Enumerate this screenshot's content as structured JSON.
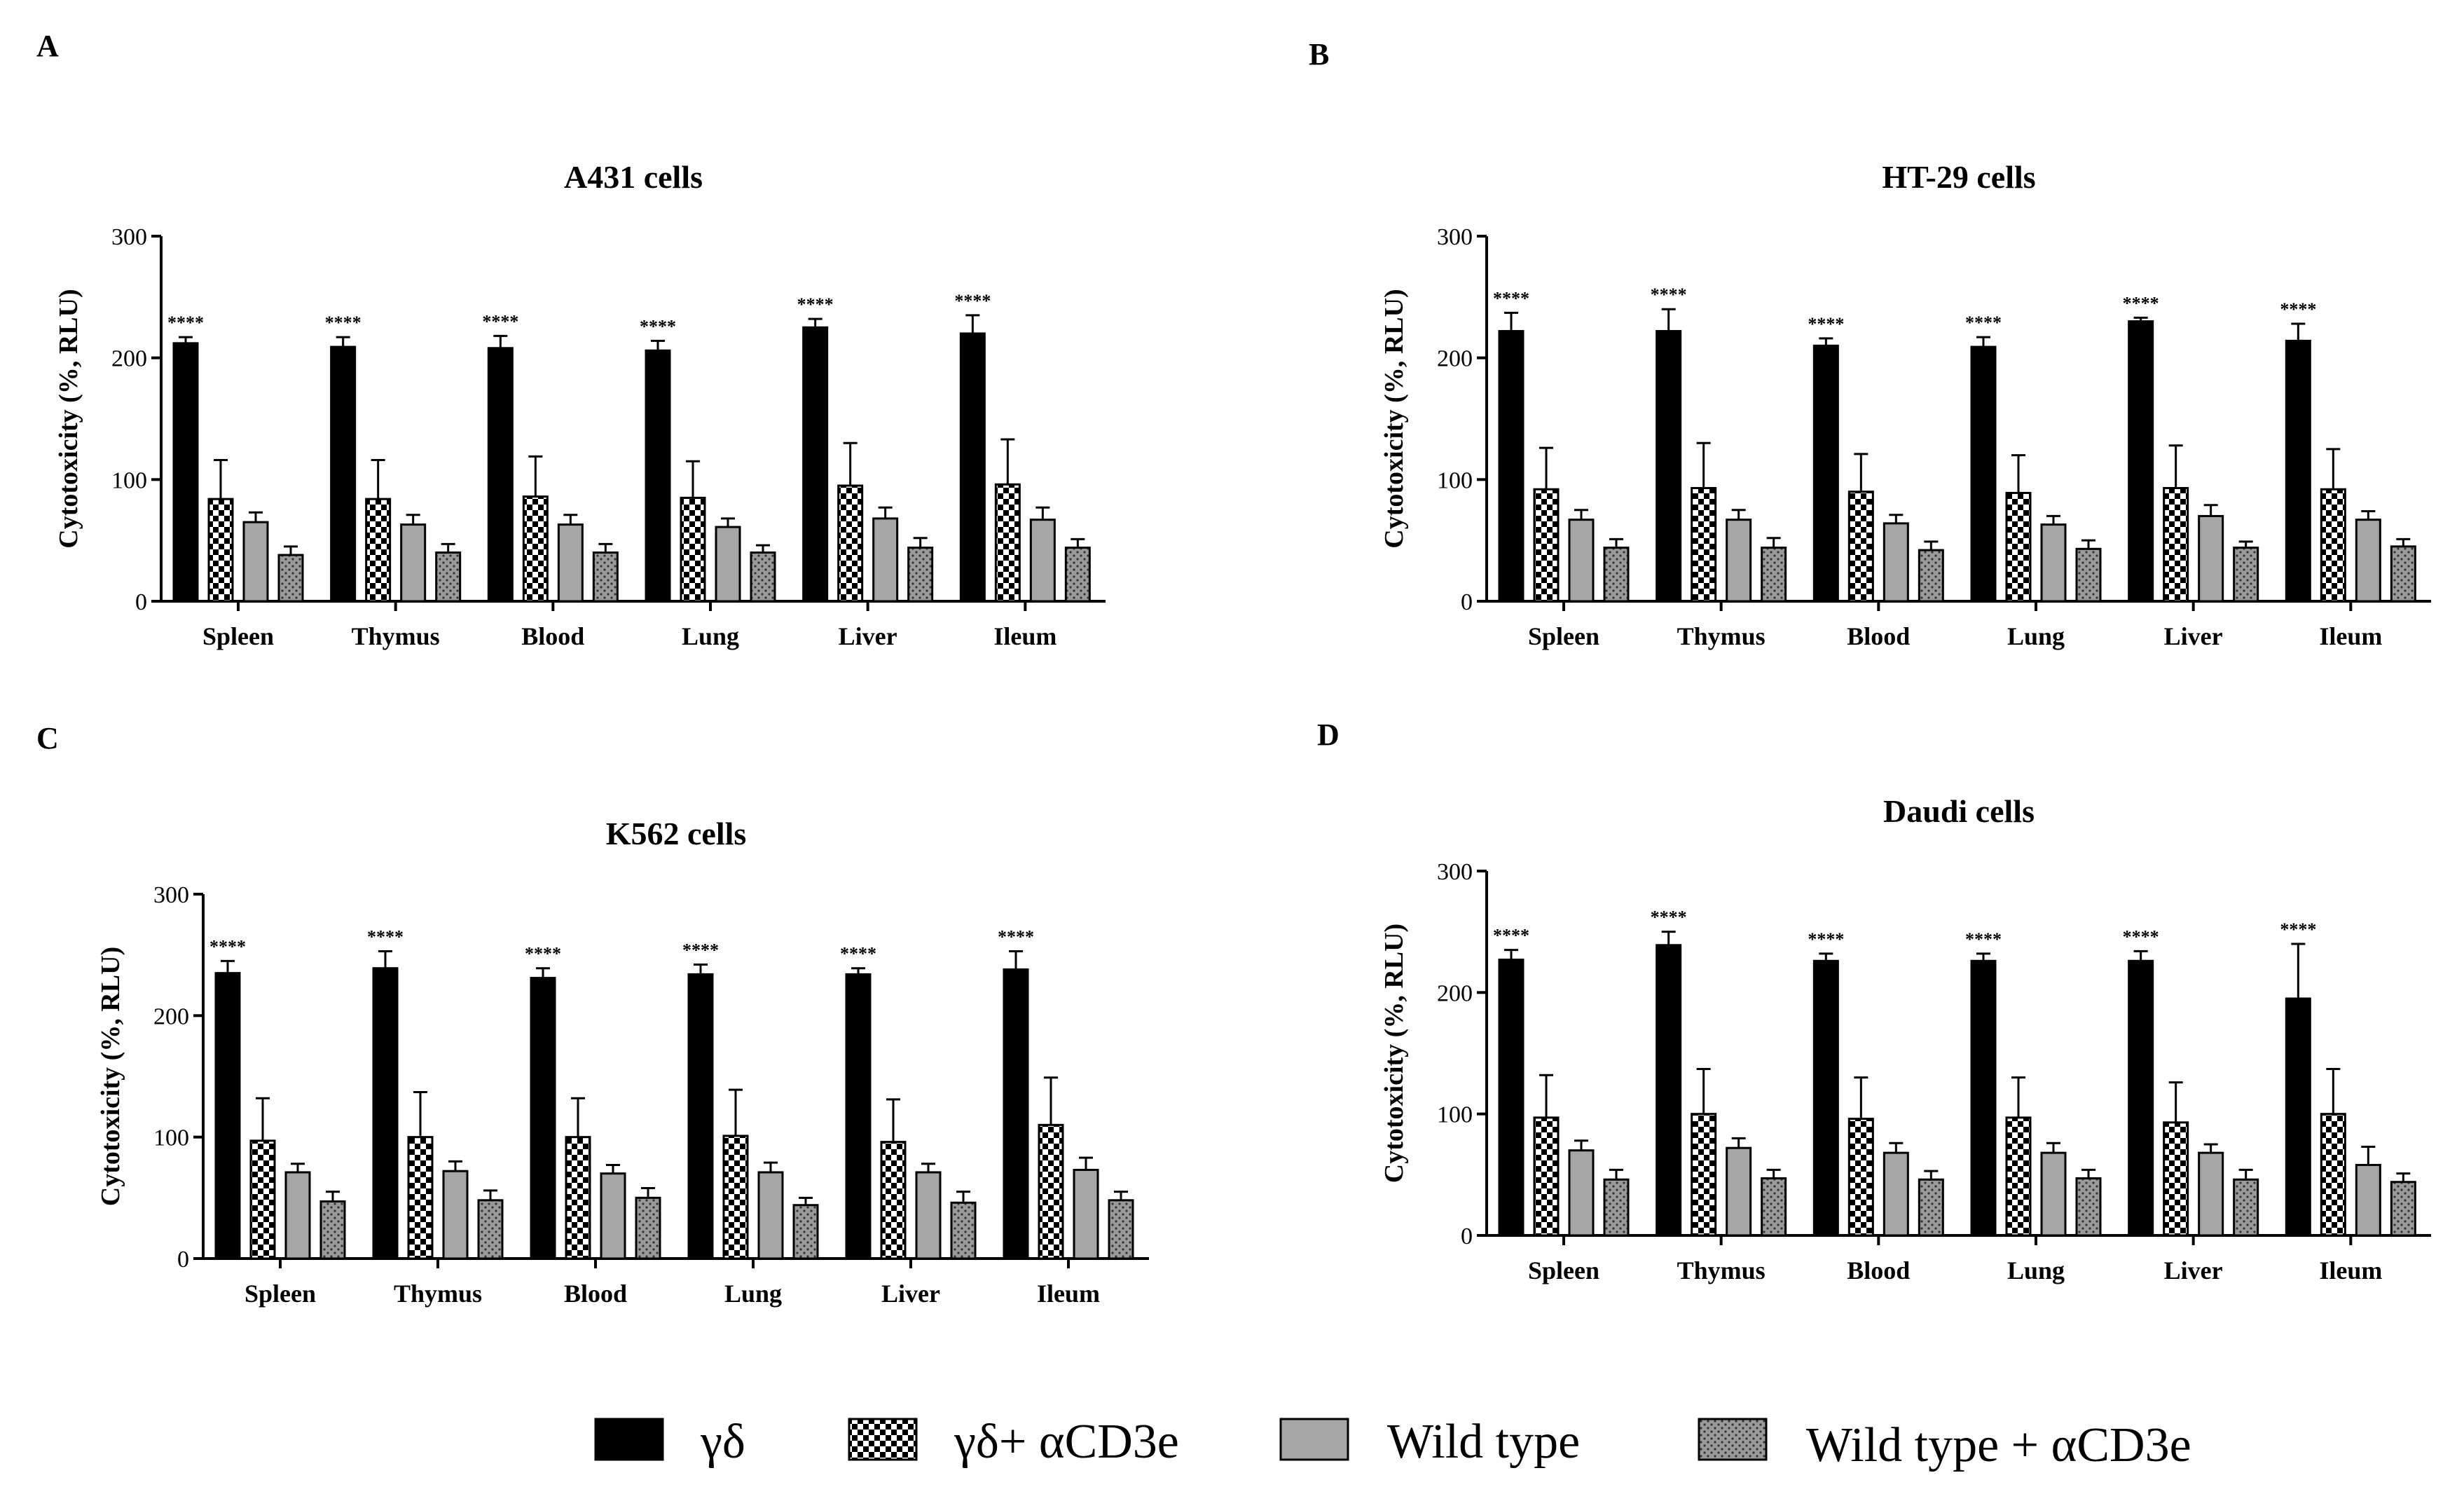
{
  "legend": [
    {
      "label": "γδ",
      "pattern": "solid-black"
    },
    {
      "label": "γδ+ αCD3e",
      "pattern": "checker"
    },
    {
      "label": "Wild type",
      "pattern": "solid-gray"
    },
    {
      "label": "Wild type + αCD3e",
      "pattern": "dotted-gray"
    }
  ],
  "colors": {
    "black": "#000000",
    "gray": "#a6a6a6",
    "dot_gray": "#9a9a9a",
    "white": "#ffffff"
  },
  "chart_data": [
    {
      "panel": "A",
      "type": "bar",
      "title": "A431 cells",
      "xlabel": "",
      "ylabel": "Cytotoxicity (%, RLU)",
      "ylim": [
        0,
        300
      ],
      "yticks": [
        0,
        100,
        200,
        300
      ],
      "categories": [
        "Spleen",
        "Thymus",
        "Blood",
        "Lung",
        "Liver",
        "Ileum"
      ],
      "series": [
        {
          "name": "γδ",
          "values": [
            212,
            209,
            208,
            206,
            225,
            220
          ],
          "errors": [
            5,
            8,
            10,
            8,
            7,
            15
          ]
        },
        {
          "name": "γδ+ αCD3e",
          "values": [
            84,
            84,
            86,
            85,
            95,
            96
          ],
          "errors": [
            32,
            32,
            33,
            30,
            35,
            37
          ]
        },
        {
          "name": "Wild type",
          "values": [
            65,
            63,
            63,
            61,
            68,
            67
          ],
          "errors": [
            8,
            8,
            8,
            7,
            9,
            10
          ]
        },
        {
          "name": "Wild type + αCD3e",
          "values": [
            38,
            40,
            40,
            40,
            44,
            44
          ],
          "errors": [
            7,
            7,
            7,
            6,
            8,
            7
          ]
        }
      ],
      "annotations": [
        "****",
        "****",
        "****",
        "****",
        "****",
        "****"
      ]
    },
    {
      "panel": "B",
      "type": "bar",
      "title": "HT-29 cells",
      "xlabel": "",
      "ylabel": "Cytotoxicity (%, RLU)",
      "ylim": [
        0,
        300
      ],
      "yticks": [
        0,
        100,
        200,
        300
      ],
      "categories": [
        "Spleen",
        "Thymus",
        "Blood",
        "Lung",
        "Liver",
        "Ileum"
      ],
      "series": [
        {
          "name": "γδ",
          "values": [
            222,
            222,
            210,
            209,
            230,
            214
          ],
          "errors": [
            15,
            18,
            6,
            8,
            3,
            14
          ]
        },
        {
          "name": "γδ+ αCD3e",
          "values": [
            92,
            93,
            90,
            89,
            93,
            92
          ],
          "errors": [
            34,
            37,
            31,
            31,
            35,
            33
          ]
        },
        {
          "name": "Wild type",
          "values": [
            67,
            67,
            64,
            63,
            70,
            67
          ],
          "errors": [
            8,
            8,
            7,
            7,
            9,
            7
          ]
        },
        {
          "name": "Wild type + αCD3e",
          "values": [
            44,
            44,
            42,
            43,
            44,
            45
          ],
          "errors": [
            7,
            8,
            7,
            7,
            5,
            6
          ]
        }
      ],
      "annotations": [
        "****",
        "****",
        "****",
        "****",
        "****",
        "****"
      ]
    },
    {
      "panel": "C",
      "type": "bar",
      "title": "K562 cells",
      "xlabel": "",
      "ylabel": "Cytotoxicity (%, RLU)",
      "ylim": [
        0,
        300
      ],
      "yticks": [
        0,
        100,
        200,
        300
      ],
      "categories": [
        "Spleen",
        "Thymus",
        "Blood",
        "Lung",
        "Liver",
        "Ileum"
      ],
      "series": [
        {
          "name": "γδ",
          "values": [
            235,
            239,
            231,
            234,
            234,
            238
          ],
          "errors": [
            10,
            14,
            8,
            8,
            5,
            15
          ]
        },
        {
          "name": "γδ+ αCD3e",
          "values": [
            97,
            100,
            100,
            101,
            96,
            110
          ],
          "errors": [
            35,
            37,
            32,
            38,
            35,
            39
          ]
        },
        {
          "name": "Wild type",
          "values": [
            71,
            72,
            70,
            71,
            71,
            73
          ],
          "errors": [
            7,
            8,
            7,
            8,
            7,
            10
          ]
        },
        {
          "name": "Wild type + αCD3e",
          "values": [
            47,
            48,
            50,
            44,
            46,
            48
          ],
          "errors": [
            8,
            8,
            8,
            6,
            9,
            7
          ]
        }
      ],
      "annotations": [
        "****",
        "****",
        "****",
        "****",
        "****",
        "****"
      ]
    },
    {
      "panel": "D",
      "type": "bar",
      "title": "Daudi cells",
      "xlabel": "",
      "ylabel": "Cytotoxicity (%, RLU)",
      "ylim": [
        0,
        300
      ],
      "yticks": [
        0,
        100,
        200,
        300
      ],
      "categories": [
        "Spleen",
        "Thymus",
        "Blood",
        "Lung",
        "Liver",
        "Ileum"
      ],
      "series": [
        {
          "name": "γδ",
          "values": [
            227,
            239,
            226,
            226,
            226,
            195
          ],
          "errors": [
            8,
            11,
            6,
            6,
            8,
            45
          ]
        },
        {
          "name": "γδ+ αCD3e",
          "values": [
            97,
            100,
            96,
            97,
            93,
            100
          ],
          "errors": [
            35,
            37,
            34,
            33,
            33,
            37
          ]
        },
        {
          "name": "Wild type",
          "values": [
            70,
            72,
            68,
            68,
            68,
            58
          ],
          "errors": [
            8,
            8,
            8,
            8,
            7,
            15
          ]
        },
        {
          "name": "Wild type + αCD3e",
          "values": [
            46,
            47,
            46,
            47,
            46,
            44
          ],
          "errors": [
            8,
            7,
            7,
            7,
            8,
            7
          ]
        }
      ],
      "annotations": [
        "****",
        "****",
        "****",
        "****",
        "****",
        "****"
      ]
    }
  ]
}
